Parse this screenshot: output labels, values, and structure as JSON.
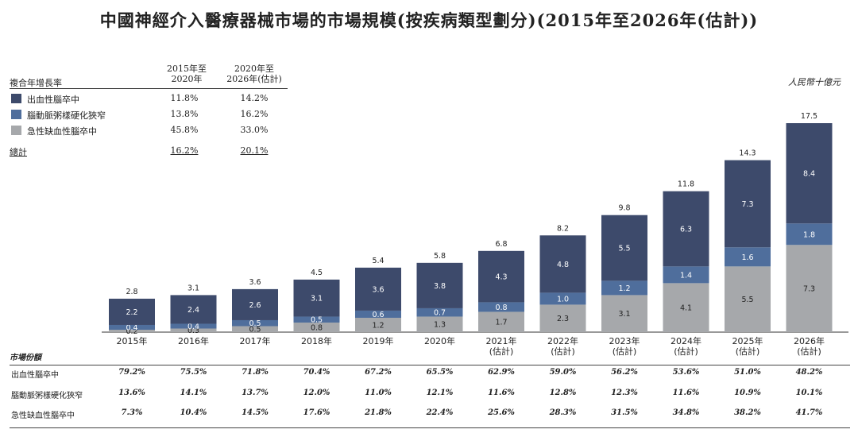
{
  "title": "中國神經介入醫療器械市場的市場規模(按疾病類型劃分)(2015年至2026年(估計))",
  "unit": "人民幣十億元",
  "cagr": {
    "header_label": "複合年增長率",
    "col1": "2015年至\n2020年",
    "col2": "2020年至\n2026年(估計)",
    "rows": [
      {
        "label": "出血性腦卒中",
        "v1": "11.8%",
        "v2": "14.2%"
      },
      {
        "label": "腦動脈粥樣硬化狹窄",
        "v1": "13.8%",
        "v2": "16.2%"
      },
      {
        "label": "急性缺血性腦卒中",
        "v1": "45.8%",
        "v2": "33.0%"
      }
    ],
    "total": {
      "label": "總計",
      "v1": "16.2%",
      "v2": "20.1%"
    }
  },
  "colors": {
    "hemorrhagic": "#3d4a6b",
    "stenosis": "#4f6e9c",
    "ischemic": "#a6a8ab"
  },
  "chart_data": {
    "type": "bar",
    "stacked": true,
    "categories": [
      "2015年",
      "2016年",
      "2017年",
      "2018年",
      "2019年",
      "2020年",
      "2021年\n(估計)",
      "2022年\n(估計)",
      "2023年\n(估計)",
      "2024年\n(估計)",
      "2025年\n(估計)",
      "2026年\n(估計)"
    ],
    "series": [
      {
        "name": "急性缺血性腦卒中",
        "values": [
          0.2,
          0.3,
          0.5,
          0.8,
          1.2,
          1.3,
          1.7,
          2.3,
          3.1,
          4.1,
          5.5,
          7.3
        ]
      },
      {
        "name": "腦動脈粥樣硬化狹窄",
        "values": [
          0.4,
          0.4,
          0.5,
          0.5,
          0.6,
          0.7,
          0.8,
          1.0,
          1.2,
          1.4,
          1.6,
          1.8
        ]
      },
      {
        "name": "出血性腦卒中",
        "values": [
          2.2,
          2.4,
          2.6,
          3.1,
          3.6,
          3.8,
          4.3,
          4.8,
          5.5,
          6.3,
          7.3,
          8.4
        ]
      }
    ],
    "totals": [
      2.8,
      3.1,
      3.6,
      4.5,
      5.4,
      5.8,
      6.8,
      8.2,
      9.8,
      11.8,
      14.3,
      17.5
    ],
    "ylim": [
      0,
      17.5
    ]
  },
  "share": {
    "title": "市場份額",
    "rows": [
      {
        "label": "出血性腦卒中",
        "values": [
          "79.2%",
          "75.5%",
          "71.8%",
          "70.4%",
          "67.2%",
          "65.5%",
          "62.9%",
          "59.0%",
          "56.2%",
          "53.6%",
          "51.0%",
          "48.2%"
        ]
      },
      {
        "label": "腦動脈粥樣硬化狹窄",
        "values": [
          "13.6%",
          "14.1%",
          "13.7%",
          "12.0%",
          "11.0%",
          "12.1%",
          "11.6%",
          "12.8%",
          "12.3%",
          "11.6%",
          "10.9%",
          "10.1%"
        ]
      },
      {
        "label": "急性缺血性腦卒中",
        "values": [
          "7.3%",
          "10.4%",
          "14.5%",
          "17.6%",
          "21.8%",
          "22.4%",
          "25.6%",
          "28.3%",
          "31.5%",
          "34.8%",
          "38.2%",
          "41.7%"
        ]
      }
    ]
  }
}
